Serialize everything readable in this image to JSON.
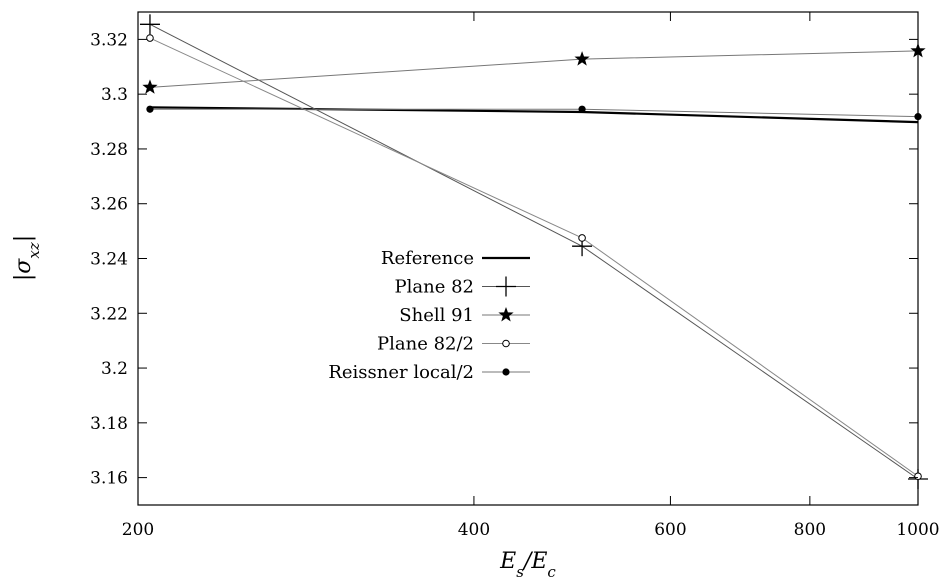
{
  "chart_data": {
    "type": "line",
    "title": "",
    "xlabel": "E_s/E_c",
    "ylabel": "|σ_xz|",
    "x_scale": "log",
    "xlim": [
      200,
      1000
    ],
    "ylim": [
      3.15,
      3.33
    ],
    "x_ticks": [
      200,
      400,
      600,
      800,
      1000
    ],
    "x_tick_labels": [
      "200",
      "400",
      "600",
      "800",
      "1000"
    ],
    "y_ticks": [
      3.16,
      3.18,
      3.2,
      3.22,
      3.24,
      3.26,
      3.28,
      3.3,
      3.32
    ],
    "y_tick_labels": [
      "3.16",
      "3.18",
      "3.2",
      "3.22",
      "3.24",
      "3.26",
      "3.28",
      "3.3",
      "3.32"
    ],
    "grid": false,
    "legend_position": "center-left",
    "series": [
      {
        "name": "Reference",
        "marker": "none",
        "x": [
          205,
          500,
          1000
        ],
        "y": [
          3.2952,
          3.2935,
          3.2898
        ]
      },
      {
        "name": "Plane 82",
        "marker": "plus",
        "x": [
          205,
          500,
          1000
        ],
        "y": [
          3.3255,
          3.2445,
          3.1595
        ]
      },
      {
        "name": "Shell 91",
        "marker": "star",
        "x": [
          205,
          500,
          1000
        ],
        "y": [
          3.3025,
          3.3128,
          3.3158
        ]
      },
      {
        "name": "Plane 82/2",
        "marker": "open-circle",
        "x": [
          205,
          500,
          1000
        ],
        "y": [
          3.3205,
          3.2475,
          3.1605
        ]
      },
      {
        "name": "Reissner local/2",
        "marker": "filled-circle",
        "x": [
          205,
          500,
          1000
        ],
        "y": [
          3.2945,
          3.2945,
          3.2918
        ]
      }
    ]
  }
}
